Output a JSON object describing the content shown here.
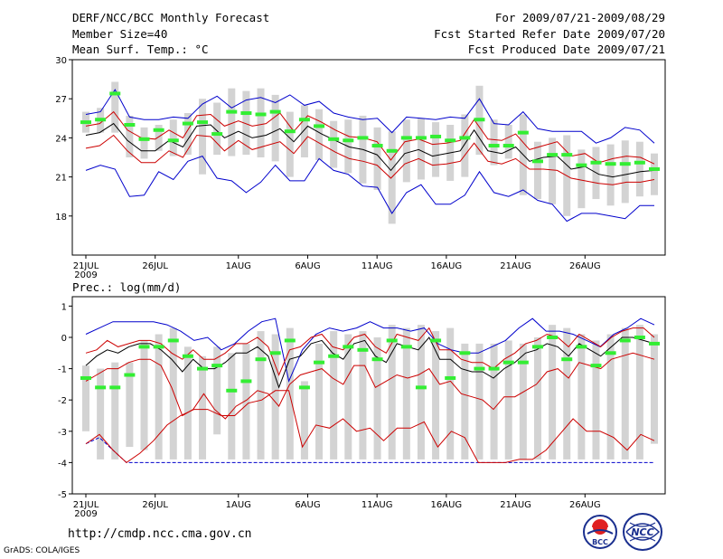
{
  "header": {
    "title": "DERF/NCC/BCC Monthly Forecast",
    "member_size": "Member Size=40",
    "variable": "Mean Surf. Temp.: °C",
    "period": "For 2009/07/21-2009/08/29",
    "started": "Fcst Started Refer Date 2009/07/20",
    "produced": "Fcst Produced Date 2009/07/21"
  },
  "footer": {
    "url": "http://cmdp.ncc.cma.gov.cn",
    "grads": "GrADS: COLA/IGES",
    "logo_bcc": "BCC",
    "logo_ncc": "NCC"
  },
  "colors": {
    "bar": "#d3d3d3",
    "mean": "#000000",
    "spread": "#cc0000",
    "range": "#0000cc",
    "median": "#33ee33"
  },
  "x_ticks": [
    "21JUL",
    "26JUL",
    "1AUG",
    "6AUG",
    "11AUG",
    "16AUG",
    "21AUG",
    "26AUG"
  ],
  "x_tick_days": [
    0,
    5,
    11,
    16,
    21,
    26,
    31,
    36
  ],
  "x_year": "2009",
  "chart_data": [
    {
      "type": "line",
      "title": "Mean Surf. Temp.: °C",
      "xlabel": "",
      "ylabel": "",
      "ylim": [
        15,
        30
      ],
      "yticks": [
        18,
        21,
        24,
        27,
        30
      ],
      "days": 39,
      "series": [
        {
          "name": "ensemble mean",
          "values": [
            24.2,
            24.4,
            25.1,
            23.8,
            23.0,
            23.0,
            23.8,
            23.3,
            24.9,
            25.0,
            24.0,
            24.5,
            24.0,
            24.2,
            24.7,
            23.7,
            24.9,
            24.3,
            23.8,
            23.3,
            23.1,
            22.7,
            21.5,
            22.8,
            23.1,
            22.6,
            22.8,
            23.0,
            24.6,
            23.0,
            22.8,
            23.3,
            22.2,
            22.5,
            22.6,
            21.6,
            21.8,
            21.2,
            21.0,
            21.2,
            21.4,
            21.5
          ]
        },
        {
          "name": "mean + spread",
          "values": [
            24.9,
            25.1,
            26.0,
            24.6,
            24.0,
            23.9,
            24.6,
            24.0,
            25.7,
            25.8,
            24.9,
            25.3,
            24.9,
            25.1,
            25.9,
            24.5,
            25.7,
            25.2,
            24.6,
            24.1,
            24.0,
            23.7,
            22.3,
            23.7,
            23.9,
            23.5,
            23.6,
            23.8,
            25.4,
            23.9,
            23.8,
            24.3,
            23.1,
            23.4,
            23.7,
            22.6,
            22.8,
            22.1,
            22.4,
            22.6,
            22.5,
            22.0
          ]
        },
        {
          "name": "mean - spread",
          "values": [
            23.2,
            23.4,
            24.2,
            23.0,
            22.1,
            22.1,
            23.0,
            22.5,
            24.2,
            24.1,
            23.0,
            23.8,
            23.1,
            23.4,
            23.7,
            22.8,
            24.1,
            23.5,
            22.9,
            22.4,
            22.2,
            21.9,
            20.9,
            22.0,
            22.4,
            21.9,
            22.0,
            22.2,
            23.6,
            22.2,
            22.0,
            22.4,
            21.6,
            21.6,
            21.5,
            20.9,
            20.7,
            20.5,
            20.4,
            20.6,
            20.6,
            20.8
          ]
        },
        {
          "name": "max",
          "values": [
            25.8,
            26.0,
            27.7,
            25.6,
            25.4,
            25.4,
            25.6,
            25.5,
            26.6,
            27.2,
            26.3,
            26.9,
            27.1,
            26.7,
            27.3,
            26.5,
            26.8,
            25.9,
            25.6,
            25.4,
            25.5,
            24.4,
            25.6,
            25.5,
            25.4,
            25.6,
            25.5,
            27.0,
            25.1,
            25.0,
            26.0,
            24.7,
            24.5,
            24.5,
            24.5,
            23.6,
            24.0,
            24.8,
            24.6,
            23.6
          ]
        },
        {
          "name": "min",
          "values": [
            21.5,
            21.9,
            21.6,
            19.5,
            19.6,
            21.4,
            20.8,
            22.2,
            22.6,
            20.9,
            20.7,
            19.8,
            20.6,
            21.9,
            20.7,
            20.7,
            22.4,
            21.5,
            21.2,
            20.3,
            20.2,
            18.2,
            19.8,
            20.4,
            18.9,
            18.9,
            19.6,
            21.4,
            19.8,
            19.5,
            20.0,
            19.2,
            18.9,
            17.6,
            18.2,
            18.2,
            18.0,
            17.8,
            18.8,
            18.8
          ]
        },
        {
          "name": "ensemble median",
          "values": [
            25.2,
            25.4,
            27.4,
            25.0,
            23.9,
            24.6,
            23.8,
            25.1,
            25.2,
            24.3,
            26.0,
            25.9,
            25.8,
            26.0,
            24.5,
            25.4,
            24.9,
            23.9,
            23.8,
            24.0,
            23.4,
            23.0,
            24.0,
            24.0,
            24.1,
            23.8,
            24.0,
            25.4,
            23.4,
            23.4,
            24.4,
            22.2,
            22.7,
            22.7,
            21.9,
            22.1,
            22.0,
            22.0,
            22.1,
            21.6
          ]
        },
        {
          "name": "bar top",
          "values": [
            26.0,
            26.3,
            28.3,
            25.7,
            24.8,
            25.0,
            25.4,
            25.9,
            27.0,
            26.7,
            27.8,
            27.6,
            27.8,
            27.3,
            26.0,
            26.5,
            26.2,
            25.3,
            25.4,
            25.7,
            24.8,
            24.5,
            25.4,
            25.5,
            25.2,
            25.0,
            25.8,
            28.0,
            25.4,
            25.0,
            25.8,
            23.7,
            24.0,
            24.2,
            23.1,
            23.3,
            23.5,
            23.8,
            23.7,
            22.8
          ]
        },
        {
          "name": "bar bottom",
          "values": [
            24.4,
            24.4,
            24.4,
            22.5,
            22.4,
            23.0,
            22.6,
            22.7,
            21.2,
            22.7,
            22.6,
            22.7,
            22.5,
            22.2,
            21.0,
            22.5,
            22.3,
            21.7,
            21.3,
            20.5,
            20.0,
            17.4,
            20.6,
            20.8,
            21.0,
            20.7,
            21.0,
            22.7,
            21.9,
            22.4,
            19.6,
            19.3,
            18.9,
            18.0,
            18.6,
            19.3,
            18.8,
            19.0,
            19.5,
            19.6
          ]
        }
      ]
    },
    {
      "type": "line",
      "title": "Prec.: log(mm/d)",
      "xlabel": "",
      "ylabel": "",
      "ylim": [
        -5,
        1.3
      ],
      "yticks": [
        -5,
        -4,
        -3,
        -2,
        -1,
        0,
        1
      ],
      "days": 39,
      "series": [
        {
          "name": "ensemble mean",
          "values": [
            -0.9,
            -0.6,
            -0.4,
            -0.5,
            -0.3,
            -0.2,
            -0.2,
            -0.4,
            -0.7,
            -1.1,
            -0.7,
            -1.0,
            -1.0,
            -0.8,
            -0.5,
            -0.5,
            -0.3,
            -0.6,
            -1.6,
            -0.7,
            -0.6,
            -0.2,
            -0.1,
            -0.5,
            -0.7,
            -0.2,
            -0.1,
            -0.6,
            -0.8,
            -0.2,
            -0.3,
            -0.4,
            0.0,
            -0.7,
            -0.7,
            -1.0,
            -1.1,
            -1.1,
            -1.3,
            -1.0,
            -0.8,
            -0.5,
            -0.4,
            -0.2,
            -0.3,
            -0.6,
            -0.2,
            -0.4,
            -0.6,
            -0.3,
            0.0,
            0.0,
            -0.1,
            -0.2
          ]
        },
        {
          "name": "mean + spread",
          "values": [
            -0.5,
            -0.4,
            -0.1,
            -0.3,
            -0.2,
            -0.1,
            -0.1,
            -0.2,
            -0.5,
            -0.7,
            -0.4,
            -0.7,
            -0.7,
            -0.5,
            -0.2,
            -0.2,
            0.0,
            -0.3,
            -1.2,
            -0.4,
            -0.3,
            0.0,
            0.1,
            -0.3,
            -0.4,
            0.0,
            0.1,
            -0.3,
            -0.5,
            0.1,
            0.0,
            -0.1,
            0.3,
            -0.4,
            -0.4,
            -0.7,
            -0.8,
            -0.8,
            -1.0,
            -0.7,
            -0.5,
            -0.2,
            -0.1,
            0.1,
            0.0,
            -0.3,
            0.1,
            -0.1,
            -0.3,
            0.0,
            0.2,
            0.3,
            0.3,
            0.0
          ]
        },
        {
          "name": "mean - spread",
          "values": [
            -1.4,
            -1.2,
            -1.0,
            -1.0,
            -0.8,
            -0.7,
            -0.7,
            -0.9,
            -1.6,
            -2.5,
            -2.3,
            -1.8,
            -2.3,
            -2.6,
            -2.2,
            -2.0,
            -1.7,
            -1.8,
            -2.2,
            -1.5,
            -1.2,
            -1.1,
            -1.0,
            -1.3,
            -1.5,
            -0.9,
            -0.9,
            -1.6,
            -1.4,
            -1.2,
            -1.3,
            -1.2,
            -1.0,
            -1.5,
            -1.4,
            -1.8,
            -1.9,
            -2.0,
            -2.3,
            -1.9,
            -1.9,
            -1.7,
            -1.5,
            -1.1,
            -1.0,
            -1.3,
            -0.8,
            -0.9,
            -1.0,
            -0.7,
            -0.6,
            -0.5,
            -0.6,
            -0.7
          ]
        },
        {
          "name": "max",
          "values": [
            0.1,
            0.3,
            0.5,
            0.5,
            0.5,
            0.5,
            0.4,
            0.2,
            -0.1,
            0.0,
            -0.4,
            -0.2,
            0.2,
            0.5,
            0.6,
            -1.4,
            -0.4,
            0.1,
            0.3,
            0.2,
            0.3,
            0.5,
            0.3,
            0.3,
            0.2,
            0.3,
            -0.2,
            -0.4,
            -0.5,
            -0.5,
            -0.3,
            -0.1,
            0.3,
            0.6,
            0.2,
            0.2,
            0.1,
            -0.1,
            -0.3,
            0.1,
            0.3,
            0.6,
            0.4
          ]
        },
        {
          "name": "min",
          "values": [
            -3.4,
            -3.2,
            -3.6,
            -4.0,
            -4.0,
            -4.0,
            -4.0,
            -4.0,
            -4.0,
            -4.0,
            -4.0,
            -4.0,
            -4.0,
            -4.0,
            -4.0,
            -4.0,
            -4.0,
            -4.0,
            -4.0,
            -4.0,
            -4.0,
            -4.0,
            -4.0,
            -4.0,
            -4.0,
            -4.0,
            -4.0,
            -4.0,
            -4.0,
            -4.0,
            -4.0,
            -4.0,
            -4.0,
            -4.0,
            -4.0,
            -4.0,
            -4.0,
            -4.0,
            -4.0,
            -4.0,
            -4.0,
            -4.0,
            -4.0
          ]
        },
        {
          "name": "lowest percentile",
          "values": [
            -3.4,
            -3.1,
            -3.6,
            -4.0,
            -3.7,
            -3.3,
            -2.8,
            -2.5,
            -2.3,
            -2.3,
            -2.5,
            -2.5,
            -2.1,
            -2.0,
            -1.7,
            -1.7,
            -3.5,
            -2.8,
            -2.9,
            -2.6,
            -3.0,
            -2.9,
            -3.3,
            -2.9,
            -2.9,
            -2.7,
            -3.5,
            -3.0,
            -3.2,
            -4.0,
            -4.0,
            -4.0,
            -3.9,
            -3.9,
            -3.6,
            -3.1,
            -2.6,
            -3.0,
            -3.0,
            -3.2,
            -3.6,
            -3.1,
            -3.3
          ]
        },
        {
          "name": "ensemble median",
          "values": [
            -1.3,
            -1.6,
            -1.6,
            -1.2,
            -0.3,
            -0.3,
            -0.1,
            -0.6,
            -1.0,
            -0.9,
            -1.7,
            -1.4,
            -0.7,
            -0.5,
            -0.1,
            -1.6,
            -0.8,
            -0.6,
            -0.3,
            -0.4,
            -0.7,
            -0.1,
            -0.3,
            -1.6,
            -0.1,
            -1.3,
            -0.5,
            -1.0,
            -1.0,
            -0.8,
            -0.8,
            -0.3,
            0.0,
            -0.7,
            -0.3,
            -0.9,
            -0.5,
            -0.1,
            0.0,
            -0.2
          ]
        },
        {
          "name": "bar top",
          "values": [
            -0.9,
            -1.0,
            -0.8,
            -0.8,
            -0.1,
            0.1,
            0.3,
            -0.3,
            -0.6,
            -0.3,
            -0.5,
            -0.2,
            0.2,
            0.1,
            0.3,
            -1.4,
            -0.2,
            0.2,
            0.1,
            0.2,
            0.0,
            0.4,
            0.3,
            0.4,
            0.2,
            0.3,
            -0.2,
            -0.2,
            -0.2,
            -0.1,
            -0.2,
            0.0,
            0.4,
            0.3,
            0.1,
            -0.1,
            0.1,
            0.3,
            0.4,
            0.1
          ]
        },
        {
          "name": "bar bottom",
          "values": [
            -3.0,
            -3.9,
            -3.9,
            -3.5,
            -3.6,
            -3.9,
            -3.9,
            -3.9,
            -3.9,
            -3.1,
            -3.9,
            -3.9,
            -3.9,
            -3.9,
            -3.9,
            -3.9,
            -3.9,
            -3.9,
            -3.9,
            -3.9,
            -3.9,
            -3.9,
            -3.9,
            -3.9,
            -3.9,
            -3.9,
            -3.9,
            -3.9,
            -3.9,
            -3.9,
            -3.9,
            -3.9,
            -3.9,
            -3.9,
            -3.9,
            -3.9,
            -3.9,
            -3.9,
            -3.9,
            -3.4
          ]
        }
      ]
    }
  ]
}
